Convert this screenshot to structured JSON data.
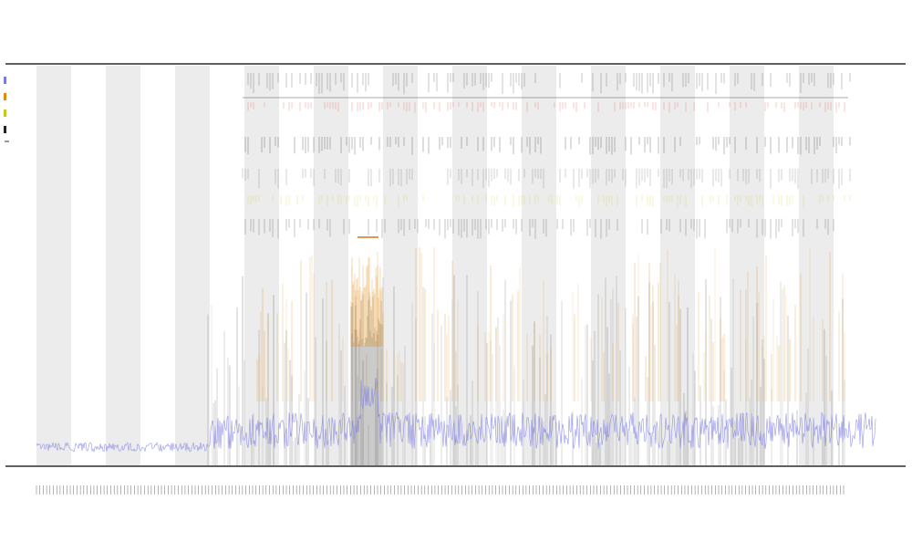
{
  "chart_data": {
    "type": "line",
    "title": "",
    "subtitle_lines": [
      "",
      ""
    ],
    "xlabel": "",
    "ylabel": "",
    "legend_position": "top-left",
    "grid": false,
    "category_count": 240,
    "shaded_bands": 12,
    "colors": {
      "coverage_line": "#7a7ae6",
      "depth_fill": "#000000",
      "peak_fill": "#e08a10",
      "track_red": "#e05050",
      "track_yellow": "#c8c820",
      "track_black": "#222222",
      "band": "#ececec",
      "axis": "#000000"
    },
    "series": [
      {
        "color": "#7a7ae6"
      },
      {
        "color": "#e08a10"
      },
      {
        "color": "#c8c820"
      },
      {
        "color": "#222222"
      }
    ],
    "legend_entries": [
      "",
      "",
      "",
      ""
    ]
  }
}
